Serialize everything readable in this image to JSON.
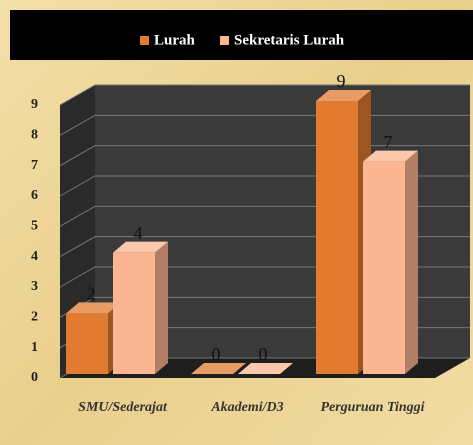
{
  "chart_data": {
    "type": "bar3d",
    "categories": [
      "SMU/Sederajat",
      "Akademi/D3",
      "Perguruan Tinggi"
    ],
    "series": [
      {
        "name": "Lurah",
        "color": "#e07b2f",
        "values": [
          2,
          0,
          9
        ]
      },
      {
        "name": "Sekretaris Lurah",
        "color": "#fbb590",
        "values": [
          4,
          0,
          7
        ]
      }
    ],
    "ylim": [
      0,
      9
    ],
    "yticks": [
      0,
      1,
      2,
      3,
      4,
      5,
      6,
      7,
      8,
      9
    ],
    "grid": true,
    "legend": "top"
  }
}
